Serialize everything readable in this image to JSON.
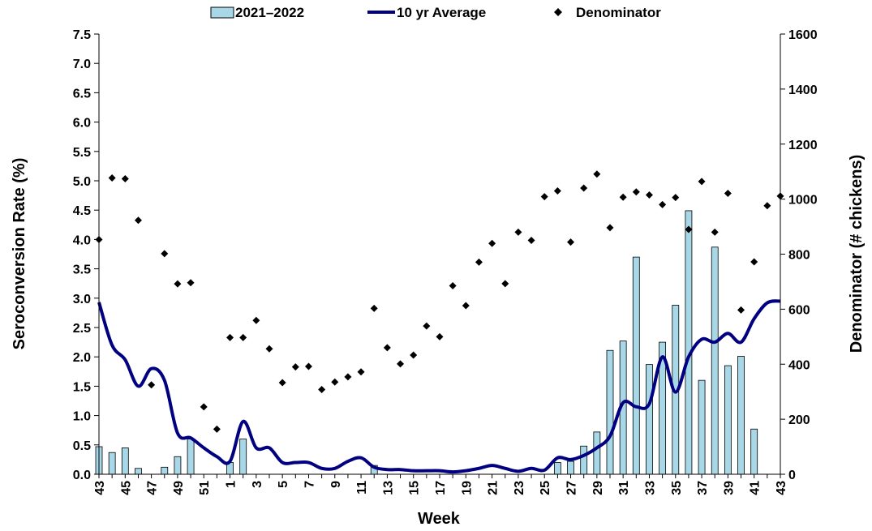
{
  "chart_data": {
    "type": "bar",
    "xlabel": "Week",
    "ylabel": "Seroconversion Rate (%)",
    "y2label": "Denominator (# chickens)",
    "ylim": [
      0,
      7.5
    ],
    "y2lim": [
      0,
      1600
    ],
    "yticks": [
      "0.0",
      "0.5",
      "1.0",
      "1.5",
      "2.0",
      "2.5",
      "3.0",
      "3.5",
      "4.0",
      "4.5",
      "5.0",
      "5.5",
      "6.0",
      "6.5",
      "7.0",
      "7.5"
    ],
    "y2ticks": [
      "0",
      "200",
      "400",
      "600",
      "800",
      "1000",
      "1200",
      "1400",
      "1600"
    ],
    "weeks": [
      43,
      44,
      45,
      46,
      47,
      48,
      49,
      50,
      51,
      52,
      1,
      2,
      3,
      4,
      5,
      6,
      7,
      8,
      9,
      10,
      11,
      12,
      13,
      14,
      15,
      16,
      17,
      18,
      19,
      20,
      21,
      22,
      23,
      24,
      25,
      26,
      27,
      28,
      29,
      30,
      31,
      32,
      33,
      34,
      35,
      36,
      37,
      38,
      39,
      40,
      41,
      42,
      43
    ],
    "xtick_labels": [
      "43",
      "45",
      "47",
      "49",
      "51",
      "1",
      "3",
      "5",
      "7",
      "9",
      "11",
      "13",
      "15",
      "17",
      "19",
      "21",
      "23",
      "25",
      "27",
      "29",
      "31",
      "33",
      "35",
      "37",
      "39",
      "41",
      "43"
    ],
    "legend": [
      "2021–2022",
      "10 yr Average",
      "Denominator"
    ],
    "series": [
      {
        "name": "2021–2022",
        "type": "bar",
        "axis": "left",
        "color": "#a8d8e8",
        "values": [
          0.47,
          0.37,
          0.45,
          0.1,
          0,
          0.12,
          0.3,
          0.6,
          0,
          0,
          0.2,
          0.6,
          0,
          0,
          0,
          0,
          0,
          0,
          0,
          0,
          0,
          0.15,
          0,
          0,
          0,
          0,
          0,
          0,
          0,
          0,
          0,
          0,
          0,
          0,
          0,
          0.2,
          0.22,
          0.48,
          0.72,
          2.11,
          2.27,
          3.7,
          1.87,
          2.25,
          2.88,
          4.49,
          1.6,
          3.87,
          1.85,
          2.01,
          0.77,
          0,
          0
        ]
      },
      {
        "name": "10 yr Average",
        "type": "line",
        "axis": "left",
        "color": "#000080",
        "values": [
          2.93,
          2.2,
          1.95,
          1.5,
          1.8,
          1.6,
          0.7,
          0.62,
          0.45,
          0.3,
          0.22,
          0.9,
          0.45,
          0.45,
          0.2,
          0.2,
          0.2,
          0.1,
          0.1,
          0.22,
          0.28,
          0.12,
          0.08,
          0.08,
          0.06,
          0.06,
          0.06,
          0.04,
          0.06,
          0.1,
          0.15,
          0.1,
          0.05,
          0.1,
          0.07,
          0.28,
          0.25,
          0.32,
          0.45,
          0.65,
          1.22,
          1.15,
          1.2,
          2.0,
          1.4,
          2.0,
          2.3,
          2.25,
          2.4,
          2.25,
          2.65,
          2.92,
          2.95
        ]
      },
      {
        "name": "Denominator",
        "type": "scatter",
        "axis": "right",
        "color": "#000000",
        "values": [
          853,
          1077,
          1074,
          923,
          325,
          802,
          692,
          696,
          245,
          164,
          497,
          497,
          559,
          456,
          333,
          390,
          392,
          308,
          335,
          354,
          372,
          603,
          460,
          401,
          433,
          539,
          500,
          685,
          613,
          771,
          839,
          693,
          880,
          850,
          1009,
          1030,
          844,
          1040,
          1091,
          896,
          1007,
          1026,
          1015,
          980,
          1006,
          890,
          1064,
          880,
          1021,
          597,
          772,
          976,
          1011
        ]
      }
    ]
  }
}
